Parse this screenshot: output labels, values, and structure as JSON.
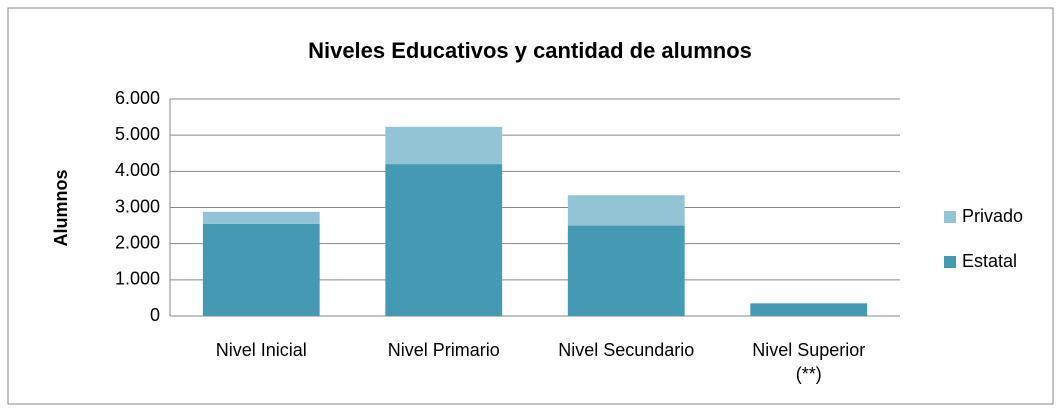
{
  "chart_data": {
    "type": "stacked_bar",
    "title": "Niveles Educativos y cantidad de alumnos",
    "y_label": "Alumnos",
    "categories": [
      "Nivel Inicial",
      "Nivel Primario",
      "Nivel Secundario",
      "Nivel Superior\n(**)"
    ],
    "series": [
      {
        "name": "Estatal",
        "color": "#4599b2",
        "values": [
          2550,
          4200,
          2500,
          350
        ]
      },
      {
        "name": "Privado",
        "color": "#93c4d5",
        "values": [
          330,
          1030,
          840,
          0
        ]
      }
    ],
    "ylim": [
      0,
      6000
    ],
    "yticks": [
      {
        "value": 0,
        "label": "0"
      },
      {
        "value": 1000,
        "label": "1.000"
      },
      {
        "value": 2000,
        "label": "2.000"
      },
      {
        "value": 3000,
        "label": "3.000"
      },
      {
        "value": 4000,
        "label": "4.000"
      },
      {
        "value": 5000,
        "label": "5.000"
      },
      {
        "value": 6000,
        "label": "6.000"
      }
    ],
    "grid": true,
    "legend": "right"
  }
}
